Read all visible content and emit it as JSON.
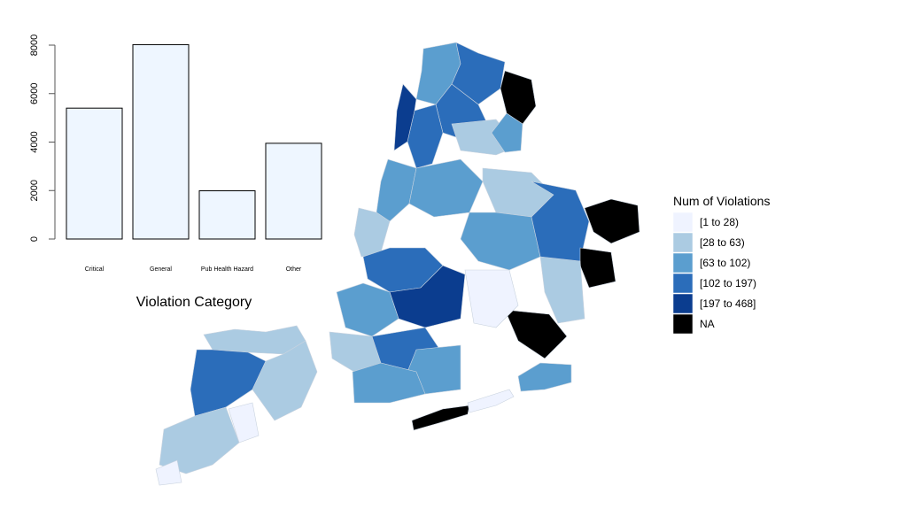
{
  "chart_data": [
    {
      "type": "bar",
      "categories": [
        "Critical",
        "General",
        "Pub Health Hazard",
        "Other"
      ],
      "values": [
        5400,
        8020,
        1990,
        3950
      ],
      "xlabel": "Violation Category",
      "ylabel": "",
      "ylim": [
        0,
        8000
      ],
      "yticks": [
        "0",
        "2000",
        "4000",
        "6000",
        "8000"
      ],
      "bar_color": "#EEF6FF"
    },
    {
      "type": "choropleth",
      "legend": {
        "title": "Num of Violations",
        "placement": "right",
        "items": [
          {
            "label": "[1 to 28)",
            "color": "#EFF3FF"
          },
          {
            "label": "[28 to 63)",
            "color": "#ABCBE2"
          },
          {
            "label": "[63 to 102)",
            "color": "#5B9ECF"
          },
          {
            "label": "[102 to 197)",
            "color": "#2B6DBA"
          },
          {
            "label": "[197 to 468]",
            "color": "#0B3D8F"
          },
          {
            "label": "NA",
            "color": "#000000"
          }
        ]
      }
    }
  ]
}
